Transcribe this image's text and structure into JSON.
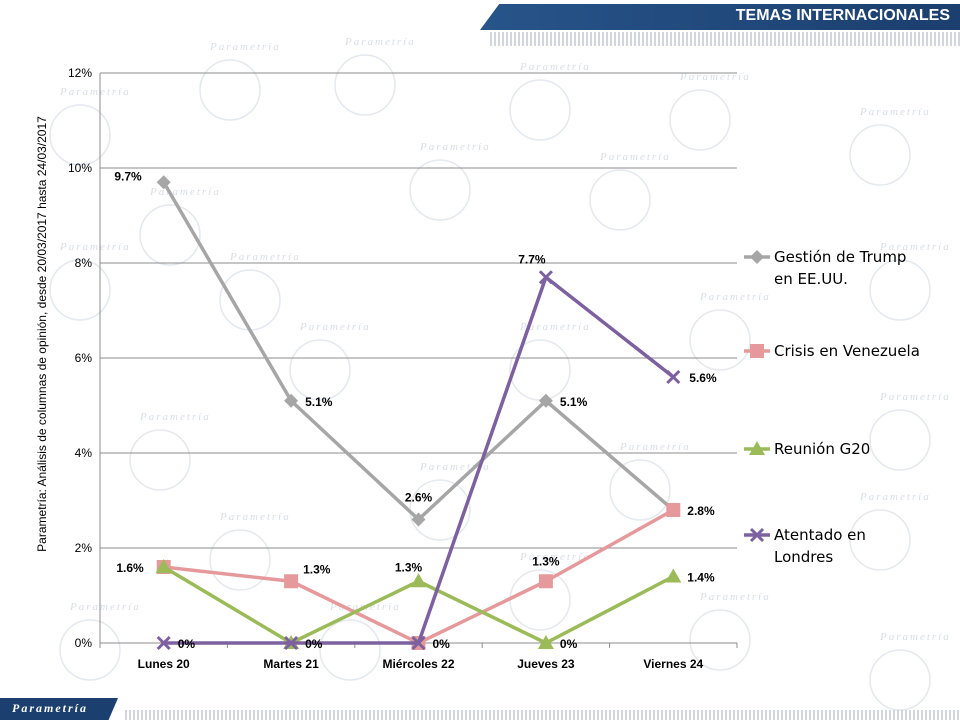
{
  "header": {
    "banner_title": "TEMAS INTERNACIONALES"
  },
  "footer": {
    "logo_text": "Parametría"
  },
  "watermark": {
    "text": "Parametría"
  },
  "side_note": "Parametría: Análisis de columnas de opinión, desde 20/03/2017 hasta 24/03/2017",
  "chart_data": {
    "type": "line",
    "title": "",
    "xlabel": "",
    "ylabel": "",
    "categories": [
      "Lunes 20",
      "Martes 21",
      "Miércoles 22",
      "Jueves 23",
      "Viernes 24"
    ],
    "ylim": [
      0,
      12
    ],
    "yticks": [
      0,
      2,
      4,
      6,
      8,
      10,
      12
    ],
    "ytick_labels": [
      "0%",
      "2%",
      "4%",
      "6%",
      "8%",
      "10%",
      "12%"
    ],
    "grid": true,
    "legend_position": "right",
    "series": [
      {
        "name": "Gestión de Trump en EE.UU.",
        "legend_lines": [
          "Gestión de Trump",
          "en EE.UU."
        ],
        "values": [
          9.7,
          5.1,
          2.6,
          5.1,
          2.8
        ],
        "labels": [
          "9.7%",
          "5.1%",
          "2.6%",
          "5.1%",
          ""
        ],
        "color": "#a6a6a6",
        "marker": "diamond"
      },
      {
        "name": "Crisis en Venezuela",
        "legend_lines": [
          "Crisis en Venezuela"
        ],
        "values": [
          1.6,
          1.3,
          0,
          1.3,
          2.8
        ],
        "labels": [
          "1.6%",
          "1.3%",
          "",
          "1.3%",
          "2.8%"
        ],
        "color": "#e6999a",
        "marker": "square"
      },
      {
        "name": "Reunión G20",
        "legend_lines": [
          "Reunión G20"
        ],
        "values": [
          1.6,
          0,
          1.3,
          0,
          1.4
        ],
        "labels": [
          "",
          "",
          "1.3%",
          "0%",
          "1.4%"
        ],
        "color": "#9bbb59",
        "marker": "triangle"
      },
      {
        "name": "Atentado en Londres",
        "legend_lines": [
          "Atentado en",
          "Londres"
        ],
        "values": [
          0,
          0,
          0,
          7.7,
          5.6
        ],
        "labels": [
          "0%",
          "0%",
          "0%",
          "7.7%",
          "5.6%"
        ],
        "color": "#7d60a0",
        "marker": "x"
      }
    ]
  }
}
